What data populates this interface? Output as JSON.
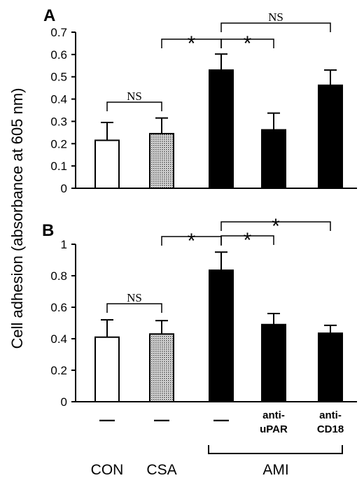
{
  "figure": {
    "ylabel": "Cell adhesion (absorbance at 605 nm)",
    "groups": [
      "CON",
      "CSA",
      "AMI"
    ],
    "treatments": [
      "—",
      "—",
      "—",
      "anti-\nuPAR",
      "anti-\nCD18"
    ]
  },
  "chart_data": [
    {
      "type": "bar",
      "panel": "A",
      "categories": [
        "CON",
        "CSA",
        "AMI",
        "AMI anti-uPAR",
        "AMI anti-CD18"
      ],
      "values": [
        0.215,
        0.245,
        0.53,
        0.262,
        0.462
      ],
      "errors": [
        0.08,
        0.07,
        0.072,
        0.075,
        0.068
      ],
      "fills": [
        "white",
        "dotted",
        "black",
        "black",
        "black"
      ],
      "ylim": [
        0,
        0.7
      ],
      "yticks": [
        0,
        0.1,
        0.2,
        0.3,
        0.4,
        0.5,
        0.6,
        0.7
      ],
      "ytick_labels": [
        "0",
        "0.1",
        "0.2",
        "0.3",
        "0.4",
        "0.5",
        "0.6",
        "0.7"
      ],
      "brackets": [
        {
          "from": 0,
          "to": 1,
          "label": "NS"
        },
        {
          "from": 1,
          "to": 2,
          "label": "*"
        },
        {
          "from": 2,
          "to": 3,
          "label": "*"
        },
        {
          "from": 2,
          "to": 4,
          "label": "NS"
        }
      ]
    },
    {
      "type": "bar",
      "panel": "B",
      "categories": [
        "CON",
        "CSA",
        "AMI",
        "AMI anti-uPAR",
        "AMI anti-CD18"
      ],
      "values": [
        0.41,
        0.43,
        0.835,
        0.49,
        0.435
      ],
      "errors": [
        0.11,
        0.085,
        0.115,
        0.07,
        0.05
      ],
      "fills": [
        "white",
        "dotted",
        "black",
        "black",
        "black"
      ],
      "ylim": [
        0,
        1
      ],
      "yticks": [
        0,
        0.2,
        0.4,
        0.6,
        0.8,
        1
      ],
      "ytick_labels": [
        "0",
        "0.2",
        "0.4",
        "0.6",
        "0.8",
        "1"
      ],
      "brackets": [
        {
          "from": 0,
          "to": 1,
          "label": "NS"
        },
        {
          "from": 1,
          "to": 2,
          "label": "*"
        },
        {
          "from": 2,
          "to": 3,
          "label": "*"
        },
        {
          "from": 2,
          "to": 4,
          "label": "*"
        }
      ]
    }
  ]
}
